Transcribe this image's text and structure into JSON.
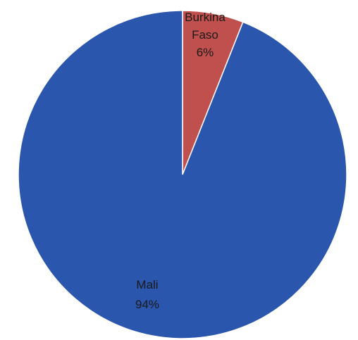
{
  "chart_data": {
    "type": "pie",
    "categories": [
      "Burkina Faso",
      "Mali"
    ],
    "values": [
      6,
      94
    ],
    "label_lines": [
      [
        "Burkina",
        "Faso",
        "6%"
      ],
      [
        "Mali",
        "94%"
      ]
    ],
    "colors": [
      "#c0504d",
      "#2b56ad"
    ],
    "slice_border_color": "#ffffff",
    "start_angle_deg": 0,
    "direction": "clockwise",
    "legend": "none"
  }
}
